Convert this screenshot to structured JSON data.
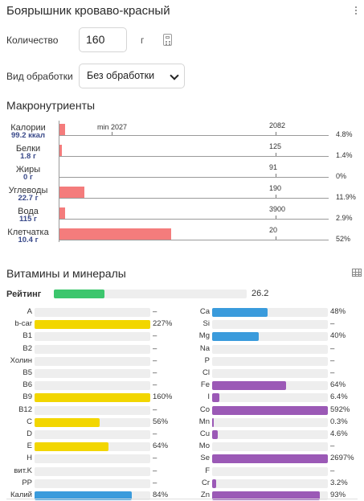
{
  "title": "Боярышник кроваво-красный",
  "quantity": {
    "label": "Количество",
    "value": "160",
    "unit": "г"
  },
  "processing": {
    "label": "Вид обработки",
    "selected": "Без обработки"
  },
  "macros": {
    "heading": "Макронутриенты",
    "items": [
      {
        "name": "Калории",
        "value": "99.2 ккал",
        "norm": "2082",
        "min_label": "min 2027",
        "pct": "4.8%",
        "fraction": 0.048
      },
      {
        "name": "Белки",
        "value": "1.8 г",
        "norm": "125",
        "pct": "1.4%",
        "fraction": 0.014
      },
      {
        "name": "Жиры",
        "value": "0 г",
        "norm": "91",
        "pct": "0%",
        "fraction": 0.0
      },
      {
        "name": "Углеводы",
        "value": "22.7 г",
        "norm": "190",
        "pct": "11.9%",
        "fraction": 0.119
      },
      {
        "name": "Вода",
        "value": "115 г",
        "norm": "3900",
        "pct": "2.9%",
        "fraction": 0.029
      },
      {
        "name": "Клетчатка",
        "value": "10.4 г",
        "norm": "20",
        "pct": "52%",
        "fraction": 0.52
      }
    ]
  },
  "vitamins": {
    "heading": "Витамины и минералы",
    "rating": {
      "label": "Рейтинг",
      "value": "26.2",
      "fraction": 0.262
    },
    "colors": {
      "yellow": "#f2d600",
      "blue": "#3a9bdc",
      "purple": "#9b59b6",
      "green": "#3cc66d"
    },
    "left": [
      {
        "name": "A",
        "value": "–",
        "fraction": 0,
        "color": ""
      },
      {
        "name": "b-car",
        "value": "227%",
        "fraction": 1.0,
        "color": "#f2d600"
      },
      {
        "name": "B1",
        "value": "–",
        "fraction": 0,
        "color": ""
      },
      {
        "name": "B2",
        "value": "–",
        "fraction": 0,
        "color": ""
      },
      {
        "name": "Холин",
        "value": "–",
        "fraction": 0,
        "color": ""
      },
      {
        "name": "B5",
        "value": "–",
        "fraction": 0,
        "color": ""
      },
      {
        "name": "B6",
        "value": "–",
        "fraction": 0,
        "color": ""
      },
      {
        "name": "B9",
        "value": "160%",
        "fraction": 1.0,
        "color": "#f2d600"
      },
      {
        "name": "B12",
        "value": "–",
        "fraction": 0,
        "color": ""
      },
      {
        "name": "C",
        "value": "56%",
        "fraction": 0.56,
        "color": "#f2d600"
      },
      {
        "name": "D",
        "value": "–",
        "fraction": 0,
        "color": ""
      },
      {
        "name": "E",
        "value": "64%",
        "fraction": 0.64,
        "color": "#f2d600"
      },
      {
        "name": "H",
        "value": "–",
        "fraction": 0,
        "color": ""
      },
      {
        "name": "вит.K",
        "value": "–",
        "fraction": 0,
        "color": ""
      },
      {
        "name": "PP",
        "value": "–",
        "fraction": 0,
        "color": ""
      },
      {
        "name": "Калий",
        "value": "84%",
        "fraction": 0.84,
        "color": "#3a9bdc"
      }
    ],
    "right": [
      {
        "name": "Ca",
        "value": "48%",
        "fraction": 0.48,
        "color": "#3a9bdc"
      },
      {
        "name": "Si",
        "value": "–",
        "fraction": 0,
        "color": ""
      },
      {
        "name": "Mg",
        "value": "40%",
        "fraction": 0.4,
        "color": "#3a9bdc"
      },
      {
        "name": "Na",
        "value": "–",
        "fraction": 0,
        "color": ""
      },
      {
        "name": "P",
        "value": "–",
        "fraction": 0,
        "color": ""
      },
      {
        "name": "Cl",
        "value": "–",
        "fraction": 0,
        "color": ""
      },
      {
        "name": "Fe",
        "value": "64%",
        "fraction": 0.64,
        "color": "#9b59b6"
      },
      {
        "name": "I",
        "value": "6.4%",
        "fraction": 0.064,
        "color": "#9b59b6"
      },
      {
        "name": "Co",
        "value": "592%",
        "fraction": 1.0,
        "color": "#9b59b6"
      },
      {
        "name": "Mn",
        "value": "0.3%",
        "fraction": 0.003,
        "color": "#9b59b6"
      },
      {
        "name": "Cu",
        "value": "4.6%",
        "fraction": 0.046,
        "color": "#9b59b6"
      },
      {
        "name": "Mo",
        "value": "–",
        "fraction": 0,
        "color": ""
      },
      {
        "name": "Se",
        "value": "2697%",
        "fraction": 1.0,
        "color": "#9b59b6"
      },
      {
        "name": "F",
        "value": "–",
        "fraction": 0,
        "color": ""
      },
      {
        "name": "Cr",
        "value": "3.2%",
        "fraction": 0.032,
        "color": "#9b59b6"
      },
      {
        "name": "Zn",
        "value": "93%",
        "fraction": 0.93,
        "color": "#9b59b6"
      }
    ]
  }
}
